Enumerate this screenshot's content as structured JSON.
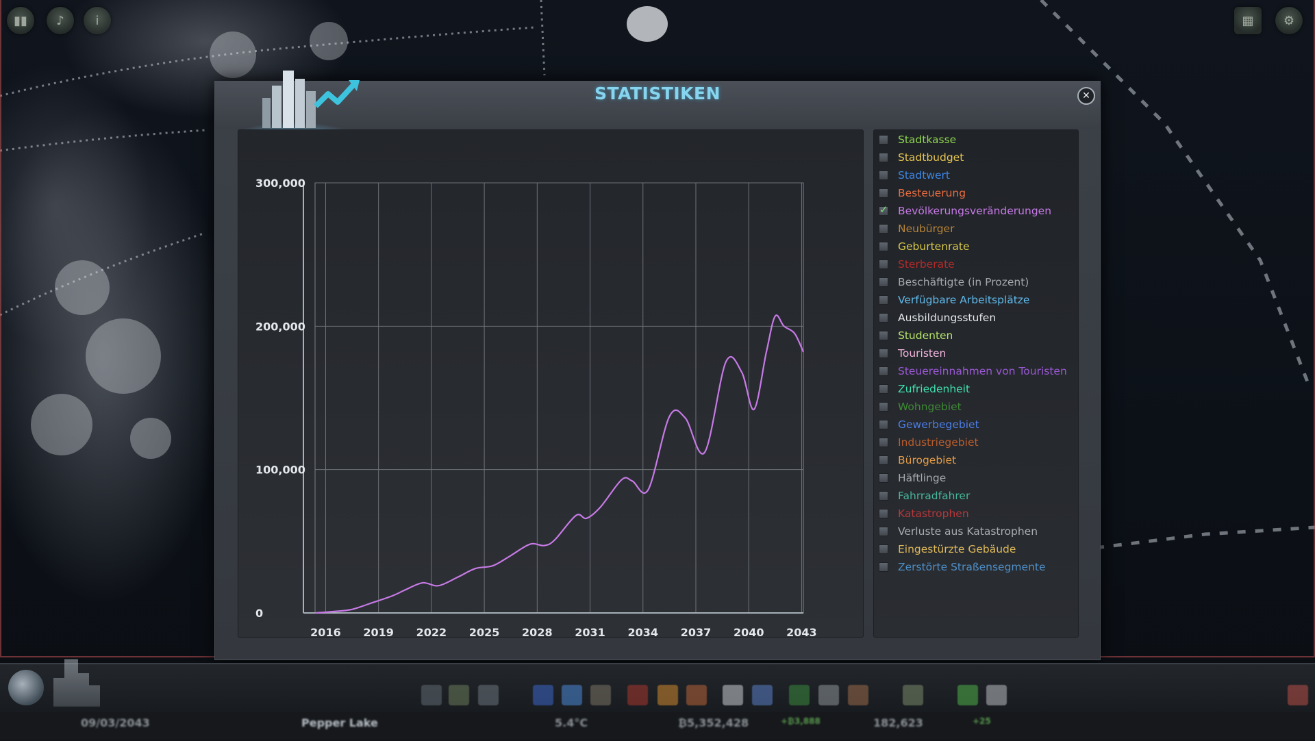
{
  "dialog": {
    "title": "STATISTIKEN",
    "close_icon": "✕"
  },
  "chart_data": {
    "type": "line",
    "title": "",
    "xlabel": "",
    "ylabel": "",
    "x_ticks": [
      "2016",
      "2019",
      "2022",
      "2025",
      "2028",
      "2031",
      "2034",
      "2037",
      "2040",
      "2043"
    ],
    "y_ticks": [
      "0",
      "100,000",
      "200,000",
      "300,000"
    ],
    "xlim": [
      2015.4,
      2043.1
    ],
    "ylim": [
      0,
      300000
    ],
    "grid": true,
    "series": [
      {
        "name": "Bevölkerungsveränderungen",
        "color": "#c77ae6",
        "x": [
          2015.4,
          2016.5,
          2017.5,
          2018.5,
          2019.8,
          2020.5,
          2021.5,
          2022.4,
          2023.5,
          2024.5,
          2025.5,
          2026.5,
          2027.6,
          2028.4,
          2029.0,
          2030.2,
          2030.8,
          2031.6,
          2032.8,
          2033.4,
          2034.3,
          2035.5,
          2036.4,
          2037.5,
          2038.7,
          2039.6,
          2040.3,
          2041.0,
          2041.5,
          2042.0,
          2042.6,
          2043.1
        ],
        "y": [
          0,
          1000,
          2500,
          6500,
          12000,
          16000,
          21000,
          19000,
          25000,
          31000,
          33000,
          40000,
          48000,
          47000,
          51000,
          68000,
          66000,
          74000,
          93000,
          92000,
          86000,
          137000,
          136000,
          112000,
          175000,
          168000,
          142000,
          182000,
          207000,
          200000,
          195000,
          182000
        ]
      }
    ]
  },
  "legend": {
    "items": [
      {
        "label": "Stadtkasse",
        "color": "#8ed64e",
        "checked": false
      },
      {
        "label": "Stadtbudget",
        "color": "#e7c652",
        "checked": false
      },
      {
        "label": "Stadtwert",
        "color": "#3d86e6",
        "checked": false
      },
      {
        "label": "Besteuerung",
        "color": "#e86c3f",
        "checked": false
      },
      {
        "label": "Bevölkerungsveränderungen",
        "color": "#c77ae6",
        "checked": true
      },
      {
        "label": "Neubürger",
        "color": "#b9853a",
        "checked": false
      },
      {
        "label": "Geburtenrate",
        "color": "#d7c84a",
        "checked": false
      },
      {
        "label": "Sterberate",
        "color": "#b52a2a",
        "checked": false
      },
      {
        "label": "Beschäftigte (in Prozent)",
        "color": "#a3a8ad",
        "checked": false
      },
      {
        "label": "Verfügbare Arbeitsplätze",
        "color": "#60b9ea",
        "checked": false
      },
      {
        "label": "Ausbildungsstufen",
        "color": "#e6e8ea",
        "checked": false
      },
      {
        "label": "Studenten",
        "color": "#b5e36a",
        "checked": false
      },
      {
        "label": "Touristen",
        "color": "#f0b4dc",
        "checked": false
      },
      {
        "label": "Steuereinnahmen von Touristen",
        "color": "#9a58d4",
        "checked": false
      },
      {
        "label": "Zufriedenheit",
        "color": "#3fe2b2",
        "checked": false
      },
      {
        "label": "Wohngebiet",
        "color": "#3e8a34",
        "checked": false
      },
      {
        "label": "Gewerbegebiet",
        "color": "#4d7fe6",
        "checked": false
      },
      {
        "label": "Industriegebiet",
        "color": "#b85c2c",
        "checked": false
      },
      {
        "label": "Bürogebiet",
        "color": "#e39c47",
        "checked": false
      },
      {
        "label": "Häftlinge",
        "color": "#a6aaae",
        "checked": false
      },
      {
        "label": "Fahrradfahrer",
        "color": "#47b69a",
        "checked": false
      },
      {
        "label": "Katastrophen",
        "color": "#b7383a",
        "checked": false
      },
      {
        "label": "Verluste aus Katastrophen",
        "color": "#a8acb0",
        "checked": false
      },
      {
        "label": "Eingestürzte Gebäude",
        "color": "#ddb85a",
        "checked": false
      },
      {
        "label": "Zerstörte Straßensegmente",
        "color": "#4f8fc7",
        "checked": false
      }
    ]
  },
  "bottom_bar": {
    "date": "09/03/2043",
    "city_name": "Pepper Lake",
    "temperature": "5.4°C",
    "money": "₿5,352,428",
    "income": "+₿3,888",
    "population": "182,623",
    "population_change": "+25"
  }
}
